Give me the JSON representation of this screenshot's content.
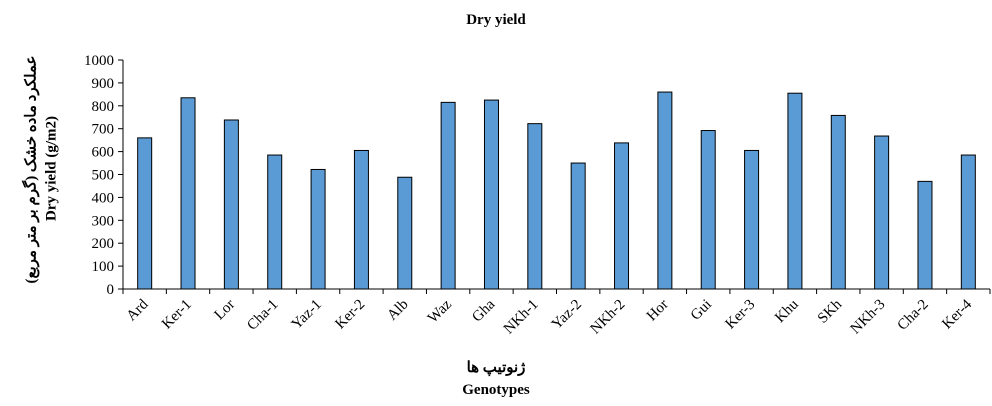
{
  "chart_data": {
    "type": "bar",
    "title": "Dry yield",
    "xlabel": "Genotypes",
    "xlabel_fa": "ژنوتیپ ها",
    "ylabel": "Dry yield (g/m2)",
    "ylabel_fa": "عملکرد ماده خشک (گرم بر متر مربع)",
    "ylim": [
      0,
      1000
    ],
    "yticks": [
      0,
      100,
      200,
      300,
      400,
      500,
      600,
      700,
      800,
      900,
      1000
    ],
    "categories": [
      "Ard",
      "Ker-1",
      "Lor",
      "Cha-1",
      "Yaz-1",
      "Ker-2",
      "Alb",
      "Waz",
      "Gha",
      "NKh-1",
      "Yaz-2",
      "NKh-2",
      "Hor",
      "Gui",
      "Ker-3",
      "Khu",
      "SKh",
      "NKh-3",
      "Cha-2",
      "Ker-4"
    ],
    "values": [
      660,
      835,
      738,
      585,
      522,
      605,
      488,
      815,
      825,
      722,
      550,
      638,
      860,
      692,
      605,
      855,
      758,
      668,
      470,
      585
    ],
    "grid": false,
    "colors": {
      "bar": "#5b9bd5",
      "bar_edge": "#000000"
    }
  }
}
